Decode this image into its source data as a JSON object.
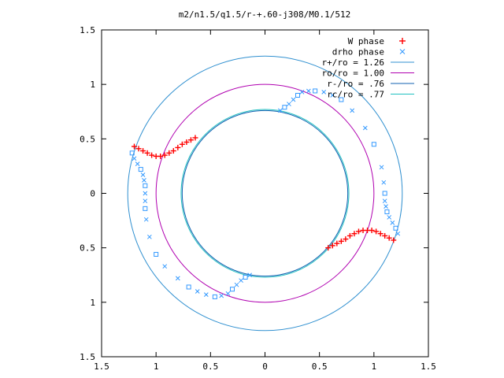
{
  "chart_data": {
    "type": "scatter",
    "title": "m2/n1.5/q1.5/r-+.60-j308/M0.1/512",
    "xlabel": "",
    "ylabel": "",
    "xlim": [
      -1.5,
      1.5
    ],
    "ylim": [
      -1.5,
      1.5
    ],
    "x_tick_labels": [
      "1.5",
      "1",
      "0.5",
      "0",
      "0.5",
      "1",
      "1.5"
    ],
    "y_tick_labels": [
      "1.5",
      "1",
      "0.5",
      "0",
      "0.5",
      "1",
      "1.5"
    ],
    "tick_values": [
      -1.5,
      -1,
      -0.5,
      0,
      0.5,
      1,
      1.5
    ],
    "grid": false,
    "legend_position": "top-right",
    "series": [
      {
        "name": "W phase",
        "marker": "+",
        "color": "#ff0000",
        "points": [
          [
            -1.2,
            0.43
          ],
          [
            -1.16,
            0.41
          ],
          [
            -1.12,
            0.39
          ],
          [
            -1.08,
            0.37
          ],
          [
            -1.04,
            0.35
          ],
          [
            -1.0,
            0.34
          ],
          [
            -0.96,
            0.34
          ],
          [
            -0.92,
            0.35
          ],
          [
            -0.88,
            0.37
          ],
          [
            -0.84,
            0.39
          ],
          [
            -0.8,
            0.42
          ],
          [
            -0.76,
            0.45
          ],
          [
            -0.72,
            0.47
          ],
          [
            -0.68,
            0.49
          ],
          [
            -0.64,
            0.51
          ],
          [
            0.58,
            -0.5
          ],
          [
            0.62,
            -0.48
          ],
          [
            0.66,
            -0.46
          ],
          [
            0.7,
            -0.44
          ],
          [
            0.74,
            -0.42
          ],
          [
            0.78,
            -0.39
          ],
          [
            0.82,
            -0.37
          ],
          [
            0.86,
            -0.35
          ],
          [
            0.9,
            -0.34
          ],
          [
            0.94,
            -0.34
          ],
          [
            0.98,
            -0.34
          ],
          [
            1.02,
            -0.35
          ],
          [
            1.06,
            -0.37
          ],
          [
            1.1,
            -0.39
          ],
          [
            1.14,
            -0.41
          ],
          [
            1.18,
            -0.43
          ]
        ]
      },
      {
        "name": "drho phase",
        "marker": "x/square",
        "color": "#3399ff",
        "points": [
          [
            -1.22,
            0.37
          ],
          [
            -1.2,
            0.32
          ],
          [
            -1.17,
            0.27
          ],
          [
            -1.14,
            0.22
          ],
          [
            -1.12,
            0.17
          ],
          [
            -1.11,
            0.12
          ],
          [
            -1.1,
            0.07
          ],
          [
            -1.1,
            0.0
          ],
          [
            -1.1,
            -0.07
          ],
          [
            -1.1,
            -0.14
          ],
          [
            -1.09,
            -0.24
          ],
          [
            -1.06,
            -0.4
          ],
          [
            -1.0,
            -0.56
          ],
          [
            -0.92,
            -0.67
          ],
          [
            -0.8,
            -0.78
          ],
          [
            -0.7,
            -0.86
          ],
          [
            -0.62,
            -0.9
          ],
          [
            -0.54,
            -0.93
          ],
          [
            -0.46,
            -0.95
          ],
          [
            -0.4,
            -0.94
          ],
          [
            -0.34,
            -0.92
          ],
          [
            -0.3,
            -0.88
          ],
          [
            -0.26,
            -0.84
          ],
          [
            -0.22,
            -0.8
          ],
          [
            -0.18,
            -0.77
          ],
          [
            -0.14,
            -0.75
          ],
          [
            1.22,
            -0.37
          ],
          [
            1.2,
            -0.32
          ],
          [
            1.17,
            -0.27
          ],
          [
            1.14,
            -0.22
          ],
          [
            1.12,
            -0.17
          ],
          [
            1.11,
            -0.12
          ],
          [
            1.1,
            -0.07
          ],
          [
            1.1,
            0.0
          ],
          [
            1.09,
            0.1
          ],
          [
            1.07,
            0.24
          ],
          [
            1.0,
            0.45
          ],
          [
            0.92,
            0.6
          ],
          [
            0.8,
            0.76
          ],
          [
            0.7,
            0.86
          ],
          [
            0.62,
            0.9
          ],
          [
            0.54,
            0.93
          ],
          [
            0.46,
            0.94
          ],
          [
            0.4,
            0.94
          ],
          [
            0.34,
            0.93
          ],
          [
            0.3,
            0.9
          ],
          [
            0.26,
            0.86
          ],
          [
            0.22,
            0.82
          ],
          [
            0.18,
            0.79
          ],
          [
            0.14,
            0.76
          ]
        ]
      },
      {
        "name": "r+/ro = 1.26",
        "type": "circle",
        "radius": 1.26,
        "color": "#3090d0"
      },
      {
        "name": "ro/ro = 1.00",
        "type": "circle",
        "radius": 1.0,
        "color": "#b000b0"
      },
      {
        "name": "r-/ro = .76",
        "type": "circle",
        "radius": 0.76,
        "color": "#1060b0"
      },
      {
        "name": "rc/ro = .77",
        "type": "circle",
        "radius": 0.77,
        "color": "#20c0c0"
      }
    ]
  }
}
